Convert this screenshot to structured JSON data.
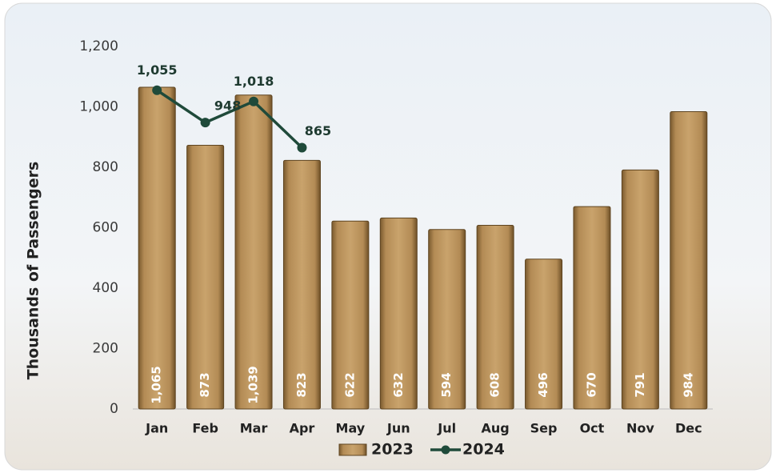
{
  "chart_data": {
    "type": "bar",
    "y_label": "Thousands of Passengers",
    "categories": [
      "Jan",
      "Feb",
      "Mar",
      "Apr",
      "May",
      "Jun",
      "Jul",
      "Aug",
      "Sep",
      "Oct",
      "Nov",
      "Dec"
    ],
    "series": [
      {
        "name": "2023",
        "type": "bar",
        "color": "#b38b55",
        "values": [
          1065,
          873,
          1039,
          823,
          622,
          632,
          594,
          608,
          496,
          670,
          791,
          984
        ],
        "value_labels": [
          "1,065",
          "873",
          "1,039",
          "823",
          "622",
          "632",
          "594",
          "608",
          "496",
          "670",
          "791",
          "984"
        ]
      },
      {
        "name": "2024",
        "type": "line",
        "color": "#1f4a3a",
        "values": [
          1055,
          948,
          1018,
          865,
          null,
          null,
          null,
          null,
          null,
          null,
          null,
          null
        ],
        "value_labels": [
          "1,055",
          "948",
          "1,018",
          "865",
          null,
          null,
          null,
          null,
          null,
          null,
          null,
          null
        ]
      }
    ],
    "ylim": [
      0,
      1200
    ],
    "yticks": [
      0,
      200,
      400,
      600,
      800,
      {
        "value": 1000,
        "label": "1,000"
      },
      {
        "value": 1200,
        "label": "1,200"
      }
    ],
    "grid": false,
    "legend": "bottom"
  }
}
